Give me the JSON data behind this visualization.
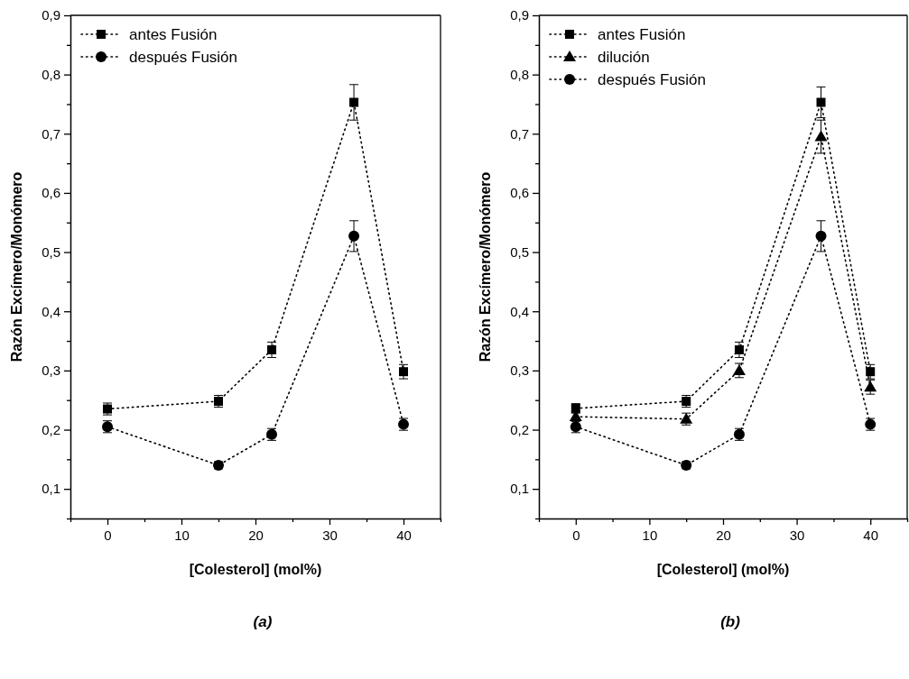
{
  "chart_data": [
    {
      "type": "line",
      "xlabel": "[Colesterol] (mol%)",
      "ylabel": "Razón Excímero/Monómero",
      "x": [
        0,
        15,
        22.2,
        33.3,
        40
      ],
      "series": [
        {
          "name": "antes Fusión",
          "color": "#000000",
          "marker": "square",
          "values": [
            0.235,
            0.248,
            0.335,
            0.753,
            0.298
          ],
          "errors": [
            0.01,
            0.01,
            0.013,
            0.03,
            0.012
          ]
        },
        {
          "name": "después Fusión",
          "color": "#000000",
          "marker": "circle",
          "values": [
            0.205,
            0.14,
            0.192,
            0.527,
            0.209
          ],
          "errors": [
            0.01,
            0.006,
            0.01,
            0.026,
            0.01
          ]
        }
      ],
      "xlim": [
        -5,
        45
      ],
      "xticks": [
        {
          "value": -5,
          "label": null
        },
        0,
        {
          "value": 5,
          "label": null
        },
        10,
        {
          "value": 15,
          "label": null
        },
        20,
        {
          "value": 25,
          "label": null
        },
        30,
        {
          "value": 35,
          "label": null
        },
        40,
        {
          "value": 45,
          "label": null
        }
      ],
      "ylim": [
        0.05,
        0.9
      ],
      "yticks": [
        {
          "value": 0.05,
          "label": null
        },
        {
          "value": 0.1,
          "label": "0,1"
        },
        {
          "value": 0.15,
          "label": null
        },
        {
          "value": 0.2,
          "label": "0,2"
        },
        {
          "value": 0.25,
          "label": null
        },
        {
          "value": 0.3,
          "label": "0,3"
        },
        {
          "value": 0.35,
          "label": null
        },
        {
          "value": 0.4,
          "label": "0,4"
        },
        {
          "value": 0.45,
          "label": null
        },
        {
          "value": 0.5,
          "label": "0,5"
        },
        {
          "value": 0.55,
          "label": null
        },
        {
          "value": 0.6,
          "label": "0,6"
        },
        {
          "value": 0.65,
          "label": null
        },
        {
          "value": 0.7,
          "label": "0,7"
        },
        {
          "value": 0.75,
          "label": null
        },
        {
          "value": 0.8,
          "label": "0,8"
        },
        {
          "value": 0.85,
          "label": null
        },
        {
          "value": 0.9,
          "label": "0,9"
        }
      ],
      "line_style": "dotted",
      "legend": "top left",
      "grid": false,
      "annotations": [
        "(a)"
      ]
    },
    {
      "type": "line",
      "xlabel": "[Colesterol] (mol%)",
      "ylabel": "Razón Excímero/Monómero",
      "x": [
        0,
        15,
        22.2,
        33.3,
        40
      ],
      "series": [
        {
          "name": "antes Fusión",
          "color": "#000000",
          "marker": "square",
          "values": [
            0.236,
            0.248,
            0.335,
            0.753,
            0.298
          ],
          "errors": [
            0.008,
            0.01,
            0.013,
            0.026,
            0.012
          ]
        },
        {
          "name": "dilución",
          "color": "#000000",
          "marker": "triangle",
          "values": [
            0.222,
            0.218,
            0.3,
            0.695,
            0.272
          ],
          "errors": [
            0.008,
            0.01,
            0.012,
            0.028,
            0.012
          ]
        },
        {
          "name": "después Fusión",
          "color": "#000000",
          "marker": "circle",
          "values": [
            0.205,
            0.14,
            0.192,
            0.527,
            0.209
          ],
          "errors": [
            0.01,
            0.006,
            0.01,
            0.026,
            0.01
          ]
        }
      ],
      "xlim": [
        -5,
        45
      ],
      "xticks": [
        {
          "value": -5,
          "label": null
        },
        0,
        {
          "value": 5,
          "label": null
        },
        10,
        {
          "value": 15,
          "label": null
        },
        20,
        {
          "value": 25,
          "label": null
        },
        30,
        {
          "value": 35,
          "label": null
        },
        40,
        {
          "value": 45,
          "label": null
        }
      ],
      "ylim": [
        0.05,
        0.9
      ],
      "yticks": [
        {
          "value": 0.05,
          "label": null
        },
        {
          "value": 0.1,
          "label": "0,1"
        },
        {
          "value": 0.15,
          "label": null
        },
        {
          "value": 0.2,
          "label": "0,2"
        },
        {
          "value": 0.25,
          "label": null
        },
        {
          "value": 0.3,
          "label": "0,3"
        },
        {
          "value": 0.35,
          "label": null
        },
        {
          "value": 0.4,
          "label": "0,4"
        },
        {
          "value": 0.45,
          "label": null
        },
        {
          "value": 0.5,
          "label": "0,5"
        },
        {
          "value": 0.55,
          "label": null
        },
        {
          "value": 0.6,
          "label": "0,6"
        },
        {
          "value": 0.65,
          "label": null
        },
        {
          "value": 0.7,
          "label": "0,7"
        },
        {
          "value": 0.75,
          "label": null
        },
        {
          "value": 0.8,
          "label": "0,8"
        },
        {
          "value": 0.85,
          "label": null
        },
        {
          "value": 0.9,
          "label": "0,9"
        }
      ],
      "line_style": "dotted",
      "legend": "top left",
      "grid": false,
      "annotations": [
        "(b)"
      ]
    }
  ]
}
